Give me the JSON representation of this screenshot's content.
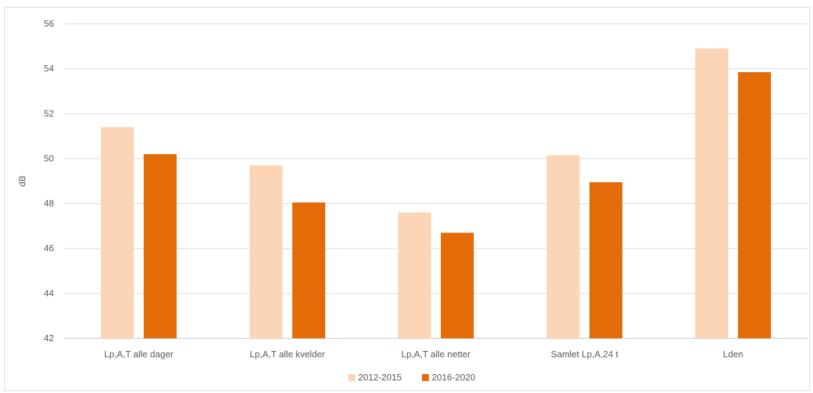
{
  "chart_data": {
    "type": "bar",
    "title": "",
    "xlabel": "",
    "ylabel": "dB",
    "ylim": [
      42,
      56
    ],
    "yticks": [
      42,
      44,
      46,
      48,
      50,
      52,
      54,
      56
    ],
    "grid": true,
    "legend_position": "bottom",
    "categories": [
      "Lp,A,T alle dager",
      "Lp,A,T alle kvelder",
      "Lp,A,T alle netter",
      "Samlet Lp,A,24 t",
      "Lden"
    ],
    "series": [
      {
        "name": "2012-2015",
        "color": "#fbd5b5",
        "values": [
          51.4,
          49.7,
          47.6,
          50.15,
          54.9
        ]
      },
      {
        "name": "2016-2020",
        "color": "#e36c09",
        "values": [
          50.2,
          48.05,
          46.7,
          48.95,
          53.85
        ]
      }
    ]
  }
}
